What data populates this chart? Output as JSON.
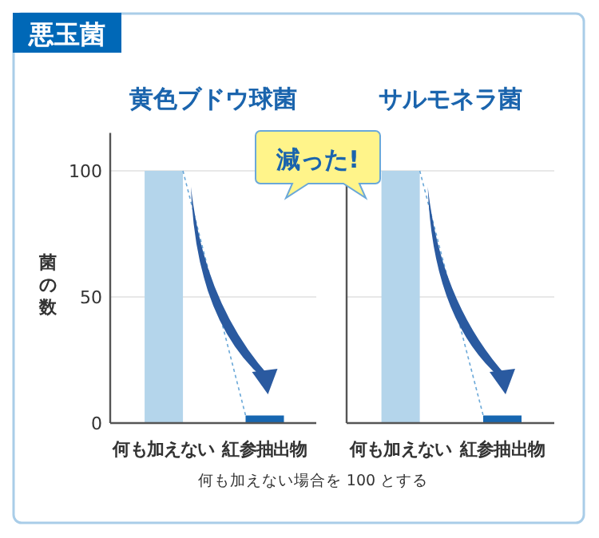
{
  "chart_data": [
    {
      "type": "bar",
      "title": "黄色ブドウ球菌",
      "ylabel": "菌の数",
      "categories": [
        "何も加えない",
        "紅参抽出物"
      ],
      "values": [
        100,
        3
      ],
      "colors": [
        "#b4d5eb",
        "#1767b1"
      ],
      "ylim": [
        0,
        115
      ],
      "yticks": [
        0,
        50,
        100
      ],
      "grid": "y",
      "annotations": [
        "悪玉菌",
        "減った!",
        "何も加えない場合を 100 とする"
      ]
    },
    {
      "type": "bar",
      "title": "サルモネラ菌",
      "categories": [
        "何も加えない",
        "紅参抽出物"
      ],
      "values": [
        100,
        3
      ],
      "colors": [
        "#b4d5eb",
        "#1767b1"
      ],
      "ylim": [
        0,
        115
      ],
      "yticks": [
        0,
        50,
        100
      ],
      "grid": "y",
      "tick_labels": "x"
    }
  ]
}
